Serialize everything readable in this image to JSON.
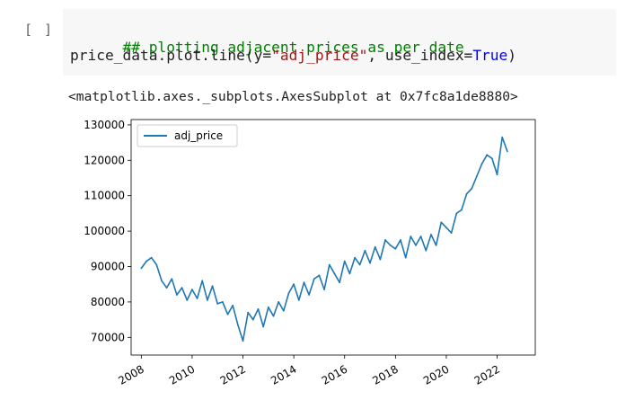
{
  "cell": {
    "run_label": "[ ]",
    "code": {
      "comment": "## plotting adjacent prices as per date",
      "line2_pre": "price_data.plot.line(y=",
      "line2_string": "\"adj_price\"",
      "line2_mid": ", use_index=",
      "line2_keyword": "True",
      "line2_post": ")"
    },
    "output_text": "<matplotlib.axes._subplots.AxesSubplot at 0x7fc8a1de8880>"
  },
  "colors": {
    "line": "#1f77b4",
    "comment": "#008000",
    "string": "#a31515",
    "keyword": "#0000ff"
  },
  "chart_data": {
    "type": "line",
    "xlabel": "",
    "ylabel": "",
    "xlim": [
      2007.6,
      2023.5
    ],
    "ylim": [
      65000,
      131500
    ],
    "x_ticks": [
      "2008",
      "2010",
      "2012",
      "2014",
      "2016",
      "2018",
      "2020",
      "2022"
    ],
    "y_ticks": [
      "70000",
      "80000",
      "90000",
      "100000",
      "110000",
      "120000",
      "130000"
    ],
    "legend": {
      "position": "upper left",
      "entries": [
        "adj_price"
      ]
    },
    "grid": false,
    "series": [
      {
        "name": "adj_price",
        "x": [
          2008.0,
          2008.2,
          2008.4,
          2008.6,
          2008.8,
          2009.0,
          2009.2,
          2009.4,
          2009.6,
          2009.8,
          2010.0,
          2010.2,
          2010.4,
          2010.6,
          2010.8,
          2011.0,
          2011.2,
          2011.4,
          2011.6,
          2011.8,
          2012.0,
          2012.2,
          2012.4,
          2012.6,
          2012.8,
          2013.0,
          2013.2,
          2013.4,
          2013.6,
          2013.8,
          2014.0,
          2014.2,
          2014.4,
          2014.6,
          2014.8,
          2015.0,
          2015.2,
          2015.4,
          2015.6,
          2015.8,
          2016.0,
          2016.2,
          2016.4,
          2016.6,
          2016.8,
          2017.0,
          2017.2,
          2017.4,
          2017.6,
          2017.8,
          2018.0,
          2018.2,
          2018.4,
          2018.6,
          2018.8,
          2019.0,
          2019.2,
          2019.4,
          2019.6,
          2019.8,
          2020.0,
          2020.2,
          2020.4,
          2020.6,
          2020.8,
          2021.0,
          2021.2,
          2021.4,
          2021.6,
          2021.8,
          2022.0,
          2022.2,
          2022.4
        ],
        "y": [
          89500,
          91500,
          92500,
          90500,
          86000,
          84000,
          86500,
          82000,
          84000,
          80500,
          83500,
          81000,
          86000,
          80500,
          84500,
          79500,
          80000,
          76500,
          79000,
          73500,
          69000,
          77000,
          75000,
          78000,
          73000,
          78500,
          76000,
          80000,
          77500,
          82500,
          85000,
          80500,
          85500,
          82000,
          86500,
          87500,
          83500,
          90500,
          88000,
          85500,
          91500,
          88000,
          92500,
          90500,
          94500,
          91000,
          95500,
          92000,
          97500,
          96000,
          95000,
          97500,
          92500,
          98500,
          96000,
          98500,
          94500,
          99000,
          96000,
          102500,
          101000,
          99500,
          105000,
          106000,
          110500,
          112000,
          115500,
          119000,
          121500,
          120500,
          116000,
          126500,
          122500
        ]
      }
    ]
  }
}
